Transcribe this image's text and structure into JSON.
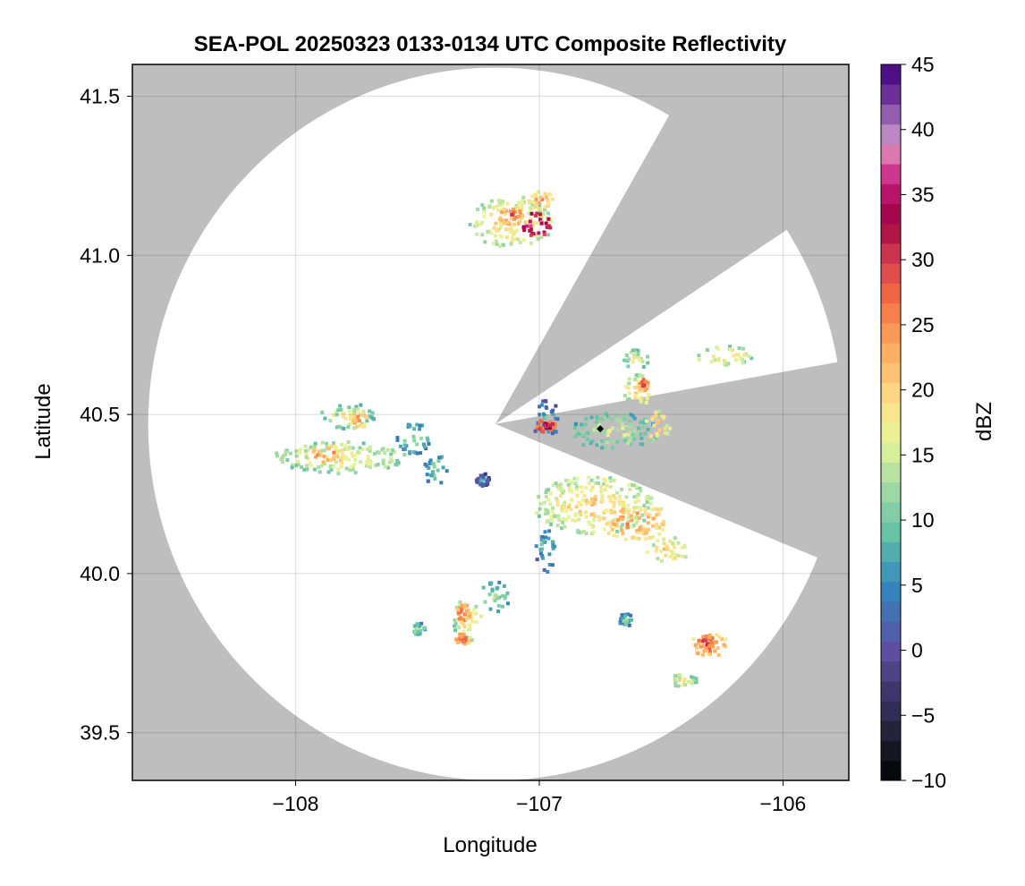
{
  "chart_data": {
    "type": "heatmap",
    "title": "SEA-POL 20250323 0133-0134 UTC Composite Reflectivity",
    "xlabel": "Longitude",
    "ylabel": "Latitude",
    "xlim": [
      -108.67,
      -105.73
    ],
    "ylim": [
      39.35,
      41.6
    ],
    "xticks": [
      -108,
      -107,
      -106
    ],
    "yticks": [
      39.5,
      40.0,
      40.5,
      41.0,
      41.5
    ],
    "xtick_labels": [
      "−108",
      "−107",
      "−106"
    ],
    "ytick_labels": [
      "39.5",
      "40.0",
      "40.5",
      "41.0",
      "41.5"
    ],
    "grid": true,
    "background_color": "#bebebe",
    "coverage_color": "#ffffff",
    "radar": {
      "lon": -107.18,
      "lat": 40.47,
      "range_lon": 2.85,
      "range_lat": 1.12,
      "blocked_sectors_deg": [
        [
          30,
          57
        ],
        [
          80,
          112
        ]
      ]
    },
    "colorbar": {
      "label": "dBZ",
      "min": -10,
      "max": 45,
      "ticks": [
        -10,
        -5,
        0,
        5,
        10,
        15,
        20,
        25,
        30,
        35,
        40,
        45
      ],
      "tick_labels": [
        "−10",
        "−5",
        "0",
        "5",
        "10",
        "15",
        "20",
        "25",
        "30",
        "35",
        "40",
        "45"
      ],
      "colormap": "Spectral_r",
      "colors": [
        "#000004",
        "#1e1e2e",
        "#40386e",
        "#5e4fa2",
        "#3288bd",
        "#66c2a5",
        "#abdda4",
        "#e6f598",
        "#fee08b",
        "#fdae61",
        "#f46d43",
        "#d53e4f",
        "#9e0142",
        "#c51b7d",
        "#de77ae",
        "#b48bc7",
        "#7b3f9e",
        "#3f007d"
      ],
      "color_stops": [
        -10,
        -7,
        -3,
        0,
        5,
        9,
        13,
        16,
        19,
        23,
        27,
        30,
        33,
        36,
        38,
        40,
        42,
        45
      ]
    },
    "marker": {
      "lon": -106.75,
      "lat": 40.455,
      "shape": "diamond",
      "color": "#000000"
    },
    "echo_cells": [
      {
        "lon": -107.12,
        "lat": 41.11,
        "dlon": 0.18,
        "dlat": 0.08,
        "dbz": 22
      },
      {
        "lon": -107.02,
        "lat": 41.1,
        "dlon": 0.06,
        "dlat": 0.04,
        "dbz": 40
      },
      {
        "lon": -107.12,
        "lat": 41.13,
        "dlon": 0.05,
        "dlat": 0.03,
        "dbz": 30
      },
      {
        "lon": -107.0,
        "lat": 41.18,
        "dlon": 0.05,
        "dlat": 0.03,
        "dbz": 25
      },
      {
        "lon": -107.83,
        "lat": 40.37,
        "dlon": 0.28,
        "dlat": 0.05,
        "dbz": 20
      },
      {
        "lon": -107.88,
        "lat": 40.38,
        "dlon": 0.06,
        "dlat": 0.03,
        "dbz": 28
      },
      {
        "lon": -107.79,
        "lat": 40.5,
        "dlon": 0.12,
        "dlat": 0.04,
        "dbz": 18
      },
      {
        "lon": -107.75,
        "lat": 40.49,
        "dlon": 0.04,
        "dlat": 0.03,
        "dbz": 25
      },
      {
        "lon": -107.52,
        "lat": 40.43,
        "dlon": 0.07,
        "dlat": 0.05,
        "dbz": 14
      },
      {
        "lon": -107.43,
        "lat": 40.33,
        "dlon": 0.05,
        "dlat": 0.05,
        "dbz": 13
      },
      {
        "lon": -106.98,
        "lat": 40.49,
        "dlon": 0.06,
        "dlat": 0.06,
        "dbz": 10
      },
      {
        "lon": -106.98,
        "lat": 40.47,
        "dlon": 0.04,
        "dlat": 0.02,
        "dbz": 35
      },
      {
        "lon": -106.7,
        "lat": 40.45,
        "dlon": 0.18,
        "dlat": 0.06,
        "dbz": 17
      },
      {
        "lon": -106.52,
        "lat": 40.47,
        "dlon": 0.05,
        "dlat": 0.05,
        "dbz": 24
      },
      {
        "lon": -106.6,
        "lat": 40.58,
        "dlon": 0.06,
        "dlat": 0.05,
        "dbz": 22
      },
      {
        "lon": -106.58,
        "lat": 40.6,
        "dlon": 0.02,
        "dlat": 0.02,
        "dbz": 32
      },
      {
        "lon": -106.61,
        "lat": 40.68,
        "dlon": 0.06,
        "dlat": 0.03,
        "dbz": 18
      },
      {
        "lon": -106.25,
        "lat": 40.69,
        "dlon": 0.12,
        "dlat": 0.03,
        "dbz": 21
      },
      {
        "lon": -106.78,
        "lat": 40.22,
        "dlon": 0.25,
        "dlat": 0.09,
        "dbz": 22
      },
      {
        "lon": -106.62,
        "lat": 40.17,
        "dlon": 0.15,
        "dlat": 0.06,
        "dbz": 26
      },
      {
        "lon": -106.48,
        "lat": 40.08,
        "dlon": 0.09,
        "dlat": 0.04,
        "dbz": 22
      },
      {
        "lon": -106.98,
        "lat": 40.08,
        "dlon": 0.04,
        "dlat": 0.07,
        "dbz": 12
      },
      {
        "lon": -107.24,
        "lat": 40.3,
        "dlon": 0.03,
        "dlat": 0.02,
        "dbz": 8
      },
      {
        "lon": -107.3,
        "lat": 39.86,
        "dlon": 0.06,
        "dlat": 0.07,
        "dbz": 21
      },
      {
        "lon": -107.32,
        "lat": 39.88,
        "dlon": 0.03,
        "dlat": 0.03,
        "dbz": 30
      },
      {
        "lon": -107.32,
        "lat": 39.8,
        "dlon": 0.03,
        "dlat": 0.02,
        "dbz": 30
      },
      {
        "lon": -107.19,
        "lat": 39.93,
        "dlon": 0.06,
        "dlat": 0.05,
        "dbz": 15
      },
      {
        "lon": -107.5,
        "lat": 39.83,
        "dlon": 0.03,
        "dlat": 0.02,
        "dbz": 15
      },
      {
        "lon": -106.31,
        "lat": 39.78,
        "dlon": 0.08,
        "dlat": 0.04,
        "dbz": 28
      },
      {
        "lon": -106.32,
        "lat": 39.79,
        "dlon": 0.04,
        "dlat": 0.02,
        "dbz": 32
      },
      {
        "lon": -106.42,
        "lat": 39.67,
        "dlon": 0.06,
        "dlat": 0.02,
        "dbz": 20
      },
      {
        "lon": -106.65,
        "lat": 39.86,
        "dlon": 0.03,
        "dlat": 0.02,
        "dbz": 13
      }
    ]
  }
}
